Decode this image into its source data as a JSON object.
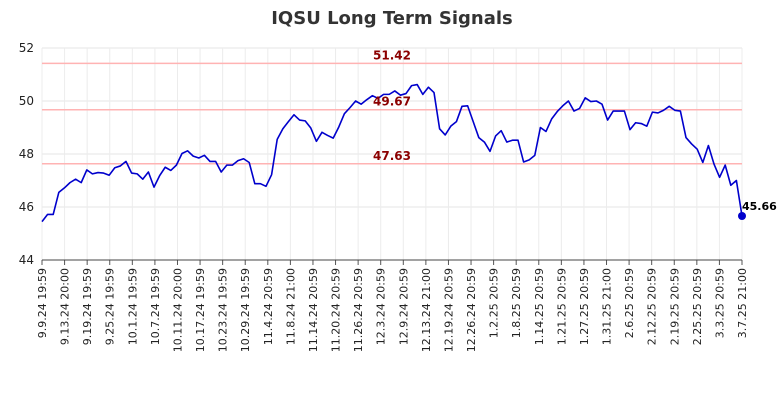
{
  "chart_data": {
    "type": "line",
    "title": "IQSU Long Term Signals",
    "xlabel": "",
    "ylabel": "",
    "ylim": [
      44,
      52
    ],
    "y_ticks": [
      44,
      46,
      48,
      50,
      52
    ],
    "grid": true,
    "x_tick_labels": [
      "9.9.24 19:59",
      "9.13.24 20:00",
      "9.19.24 19:59",
      "9.25.24 19:59",
      "10.1.24 19:59",
      "10.7.24 19:59",
      "10.11.24 20:00",
      "10.17.24 19:59",
      "10.23.24 19:59",
      "10.29.24 19:59",
      "11.4.24 20:59",
      "11.8.24 21:00",
      "11.14.24 20:59",
      "11.20.24 20:59",
      "11.26.24 20:59",
      "12.3.24 20:59",
      "12.9.24 20:59",
      "12.13.24 21:00",
      "12.19.24 20:59",
      "12.26.24 20:59",
      "1.2.25 20:59",
      "1.8.25 20:59",
      "1.14.25 20:59",
      "1.21.25 20:59",
      "1.27.25 20:59",
      "1.31.25 21:00",
      "2.6.25 20:59",
      "2.12.25 20:59",
      "2.19.25 20:59",
      "2.25.25 20:59",
      "3.3.25 20:59",
      "3.7.25 21:00"
    ],
    "reference_lines": [
      {
        "value": 51.42,
        "label": "51.42",
        "color": "#ffb3b3"
      },
      {
        "value": 49.67,
        "label": "49.67",
        "color": "#ffb3b3"
      },
      {
        "value": 47.63,
        "label": "47.63",
        "color": "#ffb3b3"
      }
    ],
    "last_value_label": "45.66",
    "series": [
      {
        "color": "#0000cc",
        "values": [
          45.45,
          45.72,
          45.72,
          46.55,
          46.72,
          46.92,
          47.05,
          46.92,
          47.4,
          47.25,
          47.3,
          47.28,
          47.2,
          47.48,
          47.55,
          47.72,
          47.28,
          47.25,
          47.05,
          47.32,
          46.75,
          47.18,
          47.5,
          47.38,
          47.58,
          48.02,
          48.12,
          47.92,
          47.85,
          47.95,
          47.72,
          47.72,
          47.32,
          47.58,
          47.58,
          47.75,
          47.82,
          47.68,
          46.88,
          46.88,
          46.78,
          47.22,
          48.55,
          48.95,
          49.22,
          49.48,
          49.28,
          49.25,
          48.98,
          48.48,
          48.82,
          48.7,
          48.6,
          49.02,
          49.52,
          49.75,
          50.0,
          49.88,
          50.05,
          50.2,
          50.1,
          50.25,
          50.25,
          50.38,
          50.22,
          50.28,
          50.58,
          50.62,
          50.25,
          50.52,
          50.32,
          48.95,
          48.72,
          49.05,
          49.22,
          49.8,
          49.82,
          49.22,
          48.62,
          48.45,
          48.1,
          48.68,
          48.88,
          48.45,
          48.52,
          48.52,
          47.7,
          47.78,
          47.95,
          49.0,
          48.85,
          49.32,
          49.6,
          49.82,
          50.0,
          49.62,
          49.72,
          50.12,
          49.98,
          50.0,
          49.88,
          49.28,
          49.62,
          49.62,
          49.62,
          48.92,
          49.18,
          49.15,
          49.05,
          49.58,
          49.55,
          49.65,
          49.8,
          49.65,
          49.62,
          48.62,
          48.38,
          48.18,
          47.68,
          48.32,
          47.62,
          47.12,
          47.58,
          46.82,
          47.0,
          45.66
        ]
      }
    ]
  }
}
